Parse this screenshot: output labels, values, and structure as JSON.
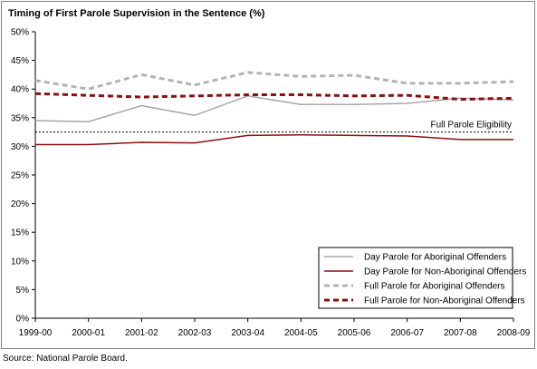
{
  "chart_data": {
    "type": "line",
    "title": "Timing of First Parole Supervision in the Sentence (%)",
    "categories": [
      "1999-00",
      "2000-01",
      "2001-02",
      "2002-03",
      "2003-04",
      "2004-05",
      "2005-06",
      "2006-07",
      "2007-08",
      "2008-09"
    ],
    "ylim": [
      0,
      50
    ],
    "yticks": [
      "0%",
      "5%",
      "10%",
      "15%",
      "20%",
      "25%",
      "30%",
      "35%",
      "40%",
      "45%",
      "50%"
    ],
    "grid": false,
    "legend_position": "bottom-right",
    "series": [
      {
        "name": "Day Parole for Aboriginal Offenders",
        "values": [
          34.5,
          34.3,
          37.1,
          35.4,
          38.8,
          37.3,
          37.3,
          37.5,
          38.4,
          38.1
        ],
        "color": "#a6a6a6",
        "style": "solid"
      },
      {
        "name": "Day Parole for Non-Aboriginal Offenders",
        "values": [
          30.3,
          30.3,
          30.7,
          30.6,
          31.9,
          32.0,
          31.9,
          31.8,
          31.2,
          31.2
        ],
        "color": "#8b0f0f",
        "style": "solid"
      },
      {
        "name": "Full Parole for Aboriginal Offenders",
        "values": [
          41.5,
          40.0,
          42.5,
          40.7,
          42.9,
          42.2,
          42.4,
          41.0,
          41.0,
          41.3
        ],
        "color": "#b3b3b3",
        "style": "dashed"
      },
      {
        "name": "Full Parole for Non-Aboriginal Offenders",
        "values": [
          39.2,
          38.9,
          38.6,
          38.8,
          39.0,
          39.0,
          38.8,
          38.9,
          38.2,
          38.4
        ],
        "color": "#8b0f0f",
        "style": "dashed"
      }
    ],
    "reference_line": {
      "label": "Full Parole Eligibility",
      "value": 32.5,
      "color": "#000000"
    },
    "source": "Source: National Parole Board."
  }
}
